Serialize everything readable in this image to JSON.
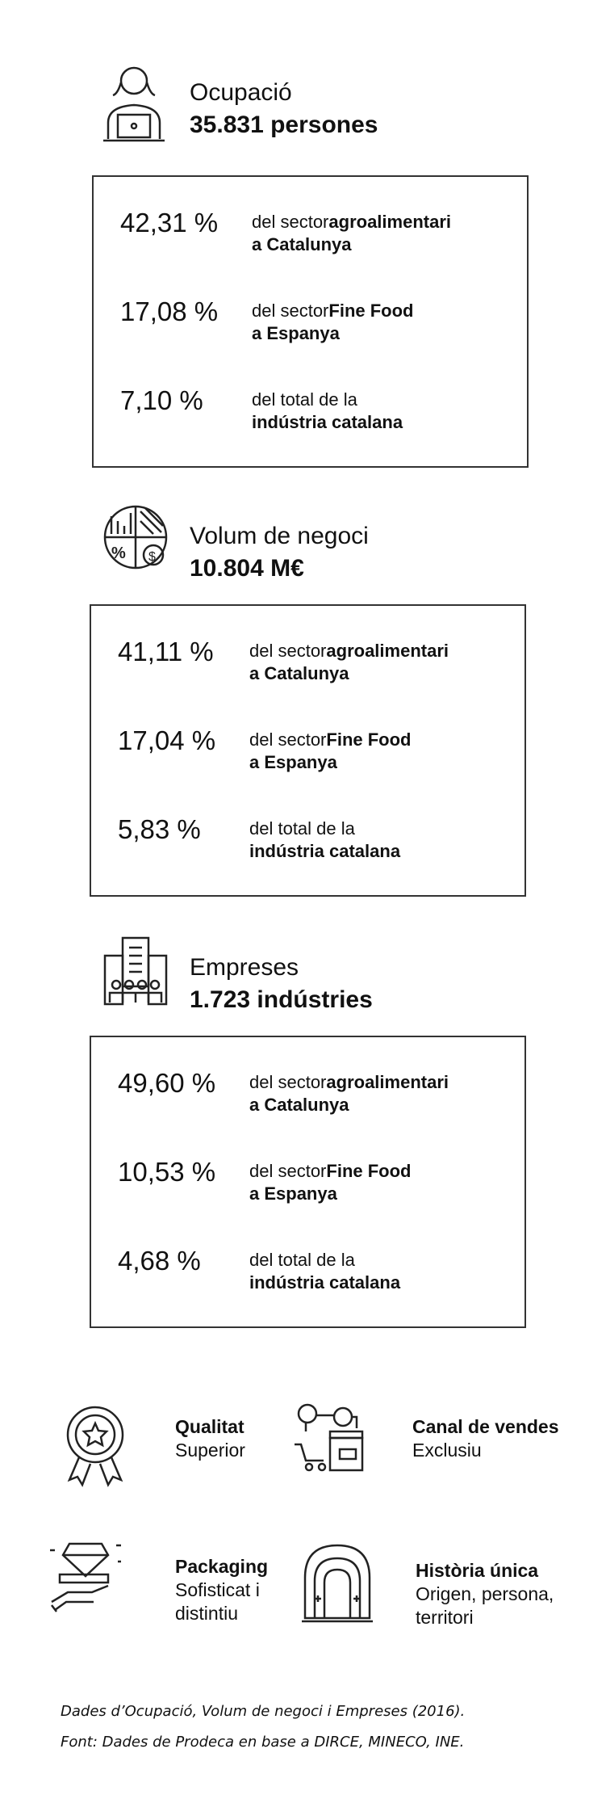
{
  "sections": [
    {
      "title": "Ocupació",
      "value": "35.831 persones",
      "rows": [
        {
          "percent": "42,31 %",
          "lines": [
            [
              {
                "text": "del sector"
              },
              {
                "bold": "agroalimentari"
              }
            ],
            [
              {
                "bold": "a Catalunya"
              }
            ]
          ]
        },
        {
          "percent": "17,08 %",
          "lines": [
            [
              {
                "text": "del sector"
              },
              {
                "bold": "Fine Food"
              }
            ],
            [
              {
                "bold": "a Espanya"
              }
            ]
          ]
        },
        {
          "percent": "7,10 %",
          "lines": [
            [
              {
                "text": "del total de la"
              }
            ],
            [
              {
                "bold": "indústria catalana"
              }
            ]
          ]
        }
      ]
    },
    {
      "title": "Volum de negoci",
      "value": "10.804 M€",
      "rows": [
        {
          "percent": "41,11 %",
          "lines": [
            [
              {
                "text": "del sector"
              },
              {
                "bold": "agroalimentari"
              }
            ],
            [
              {
                "bold": "a Catalunya"
              }
            ]
          ]
        },
        {
          "percent": "17,04 %",
          "lines": [
            [
              {
                "text": "del sector"
              },
              {
                "bold": "Fine Food"
              }
            ],
            [
              {
                "bold": "a Espanya"
              }
            ]
          ]
        },
        {
          "percent": "5,83 %",
          "lines": [
            [
              {
                "text": "del total de la"
              }
            ],
            [
              {
                "bold": "indústria catalana"
              }
            ]
          ]
        }
      ]
    },
    {
      "title": "Empreses",
      "value": "1.723 indústries",
      "rows": [
        {
          "percent": "49,60 %",
          "lines": [
            [
              {
                "text": "del sector"
              },
              {
                "bold": "agroalimentari"
              }
            ],
            [
              {
                "bold": "a Catalunya"
              }
            ]
          ]
        },
        {
          "percent": "10,53 %",
          "lines": [
            [
              {
                "text": "del sector"
              },
              {
                "bold": "Fine Food"
              }
            ],
            [
              {
                "bold": "a Espanya"
              }
            ]
          ]
        },
        {
          "percent": "4,68 %",
          "lines": [
            [
              {
                "text": "del total de la"
              }
            ],
            [
              {
                "bold": "indústria catalana"
              }
            ]
          ]
        }
      ]
    }
  ],
  "features": [
    {
      "title": "Qualitat",
      "lines": [
        "Superior"
      ]
    },
    {
      "title": "Canal de vendes",
      "lines": [
        "Exclusiu"
      ]
    },
    {
      "title": "Packaging",
      "lines": [
        "Sofisticat i",
        "distintiu"
      ]
    },
    {
      "title": "Història única",
      "lines": [
        "Origen, persona,",
        "territori"
      ]
    }
  ],
  "footnote": [
    "Dades d’Ocupació, Volum de negoci i Empreses (2016).",
    "Font: Dades de Prodeca en base a DIRCE, MINECO, INE."
  ]
}
